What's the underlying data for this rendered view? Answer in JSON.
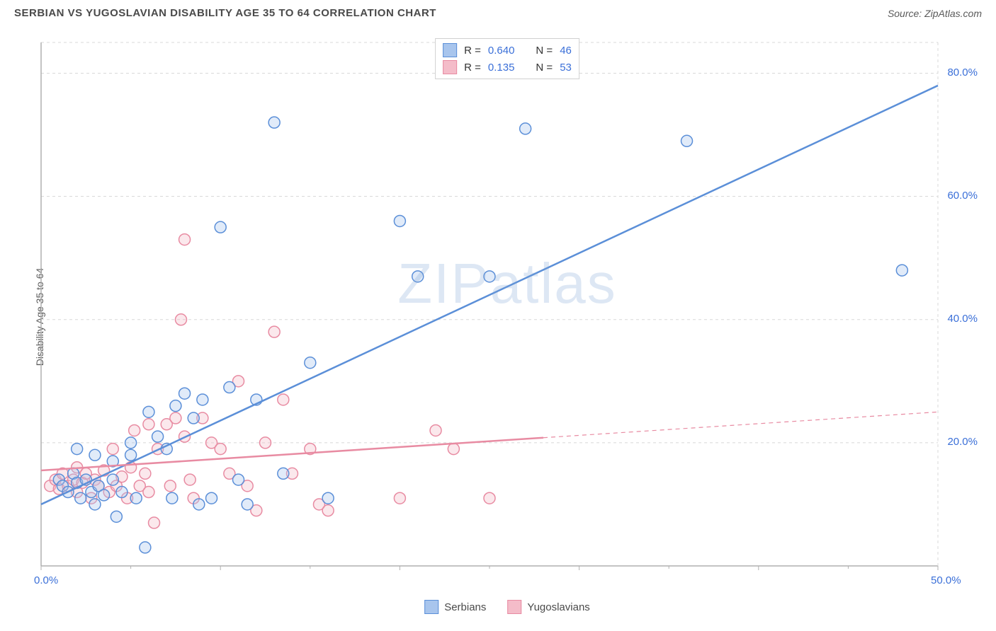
{
  "header": {
    "title": "SERBIAN VS YUGOSLAVIAN DISABILITY AGE 35 TO 64 CORRELATION CHART",
    "source": "Source: ZipAtlas.com"
  },
  "chart": {
    "type": "scatter",
    "y_axis_label": "Disability Age 35 to 64",
    "watermark": "ZIPatlas",
    "background_color": "#ffffff",
    "grid_color": "#d8d8d8",
    "axis_color": "#b0b0b0",
    "label_color": "#5a5a5a",
    "tick_label_color": "#3a6fd8",
    "xlim": [
      0,
      50
    ],
    "ylim": [
      0,
      85
    ],
    "x_ticks": [
      0,
      10,
      20,
      30,
      40,
      50
    ],
    "x_tick_labels": [
      "0.0%",
      "",
      "",
      "",
      "",
      "50.0%"
    ],
    "y_ticks": [
      20,
      40,
      60,
      80
    ],
    "y_tick_labels": [
      "20.0%",
      "40.0%",
      "60.0%",
      "80.0%"
    ],
    "marker_radius": 8,
    "marker_stroke_width": 1.5,
    "marker_fill_opacity": 0.35,
    "series": [
      {
        "name": "Serbians",
        "color": "#5b8fd8",
        "fill": "#a8c5ed",
        "r_value": "0.640",
        "n_value": "46",
        "regression": {
          "x1": 0,
          "y1": 10,
          "x2": 50,
          "y2": 78,
          "solid_until_x": 50,
          "stroke_width": 2.5
        },
        "points": [
          [
            1,
            14
          ],
          [
            1.2,
            13
          ],
          [
            1.5,
            12
          ],
          [
            1.8,
            15
          ],
          [
            2,
            13.5
          ],
          [
            2,
            19
          ],
          [
            2.2,
            11
          ],
          [
            2.5,
            14
          ],
          [
            2.8,
            12
          ],
          [
            3,
            18
          ],
          [
            3,
            10
          ],
          [
            3.2,
            13
          ],
          [
            3.5,
            11.5
          ],
          [
            4,
            14
          ],
          [
            4,
            17
          ],
          [
            4.2,
            8
          ],
          [
            4.5,
            12
          ],
          [
            5,
            20
          ],
          [
            5,
            18
          ],
          [
            5.3,
            11
          ],
          [
            5.8,
            3
          ],
          [
            6,
            25
          ],
          [
            6.5,
            21
          ],
          [
            7,
            19
          ],
          [
            7.3,
            11
          ],
          [
            7.5,
            26
          ],
          [
            8,
            28
          ],
          [
            8.5,
            24
          ],
          [
            8.8,
            10
          ],
          [
            9,
            27
          ],
          [
            9.5,
            11
          ],
          [
            10,
            55
          ],
          [
            10.5,
            29
          ],
          [
            11,
            14
          ],
          [
            11.5,
            10
          ],
          [
            12,
            27
          ],
          [
            13,
            72
          ],
          [
            13.5,
            15
          ],
          [
            15,
            33
          ],
          [
            16,
            11
          ],
          [
            20,
            56
          ],
          [
            21,
            47
          ],
          [
            25,
            47
          ],
          [
            27,
            71
          ],
          [
            36,
            69
          ],
          [
            48,
            48
          ]
        ]
      },
      {
        "name": "Yugoslavians",
        "color": "#e88ba2",
        "fill": "#f4bcc9",
        "r_value": "0.135",
        "n_value": "53",
        "regression": {
          "x1": 0,
          "y1": 15.5,
          "x2": 50,
          "y2": 25,
          "solid_until_x": 28,
          "stroke_width": 2.5
        },
        "points": [
          [
            0.5,
            13
          ],
          [
            0.8,
            14
          ],
          [
            1,
            12.5
          ],
          [
            1.2,
            15
          ],
          [
            1.5,
            13
          ],
          [
            1.8,
            14
          ],
          [
            2,
            12
          ],
          [
            2,
            16
          ],
          [
            2.3,
            13.5
          ],
          [
            2.5,
            15
          ],
          [
            2.8,
            11
          ],
          [
            3,
            14
          ],
          [
            3.2,
            13
          ],
          [
            3.5,
            15.5
          ],
          [
            3.8,
            12
          ],
          [
            4,
            19
          ],
          [
            4.2,
            13
          ],
          [
            4.5,
            14.5
          ],
          [
            4.8,
            11
          ],
          [
            5,
            16
          ],
          [
            5.2,
            22
          ],
          [
            5.5,
            13
          ],
          [
            5.8,
            15
          ],
          [
            6,
            23
          ],
          [
            6,
            12
          ],
          [
            6.3,
            7
          ],
          [
            6.5,
            19
          ],
          [
            7,
            23
          ],
          [
            7.2,
            13
          ],
          [
            7.5,
            24
          ],
          [
            7.8,
            40
          ],
          [
            8,
            21
          ],
          [
            8,
            53
          ],
          [
            8.3,
            14
          ],
          [
            8.5,
            11
          ],
          [
            9,
            24
          ],
          [
            9.5,
            20
          ],
          [
            10,
            19
          ],
          [
            10.5,
            15
          ],
          [
            11,
            30
          ],
          [
            11.5,
            13
          ],
          [
            12,
            9
          ],
          [
            12.5,
            20
          ],
          [
            13,
            38
          ],
          [
            13.5,
            27
          ],
          [
            14,
            15
          ],
          [
            15,
            19
          ],
          [
            15.5,
            10
          ],
          [
            16,
            9
          ],
          [
            20,
            11
          ],
          [
            22,
            22
          ],
          [
            25,
            11
          ],
          [
            23,
            19
          ]
        ]
      }
    ],
    "legend_top": {
      "r_label": "R =",
      "n_label": "N ="
    },
    "legend_bottom": [
      {
        "label": "Serbians",
        "color": "#5b8fd8",
        "fill": "#a8c5ed"
      },
      {
        "label": "Yugoslavians",
        "color": "#e88ba2",
        "fill": "#f4bcc9"
      }
    ]
  }
}
